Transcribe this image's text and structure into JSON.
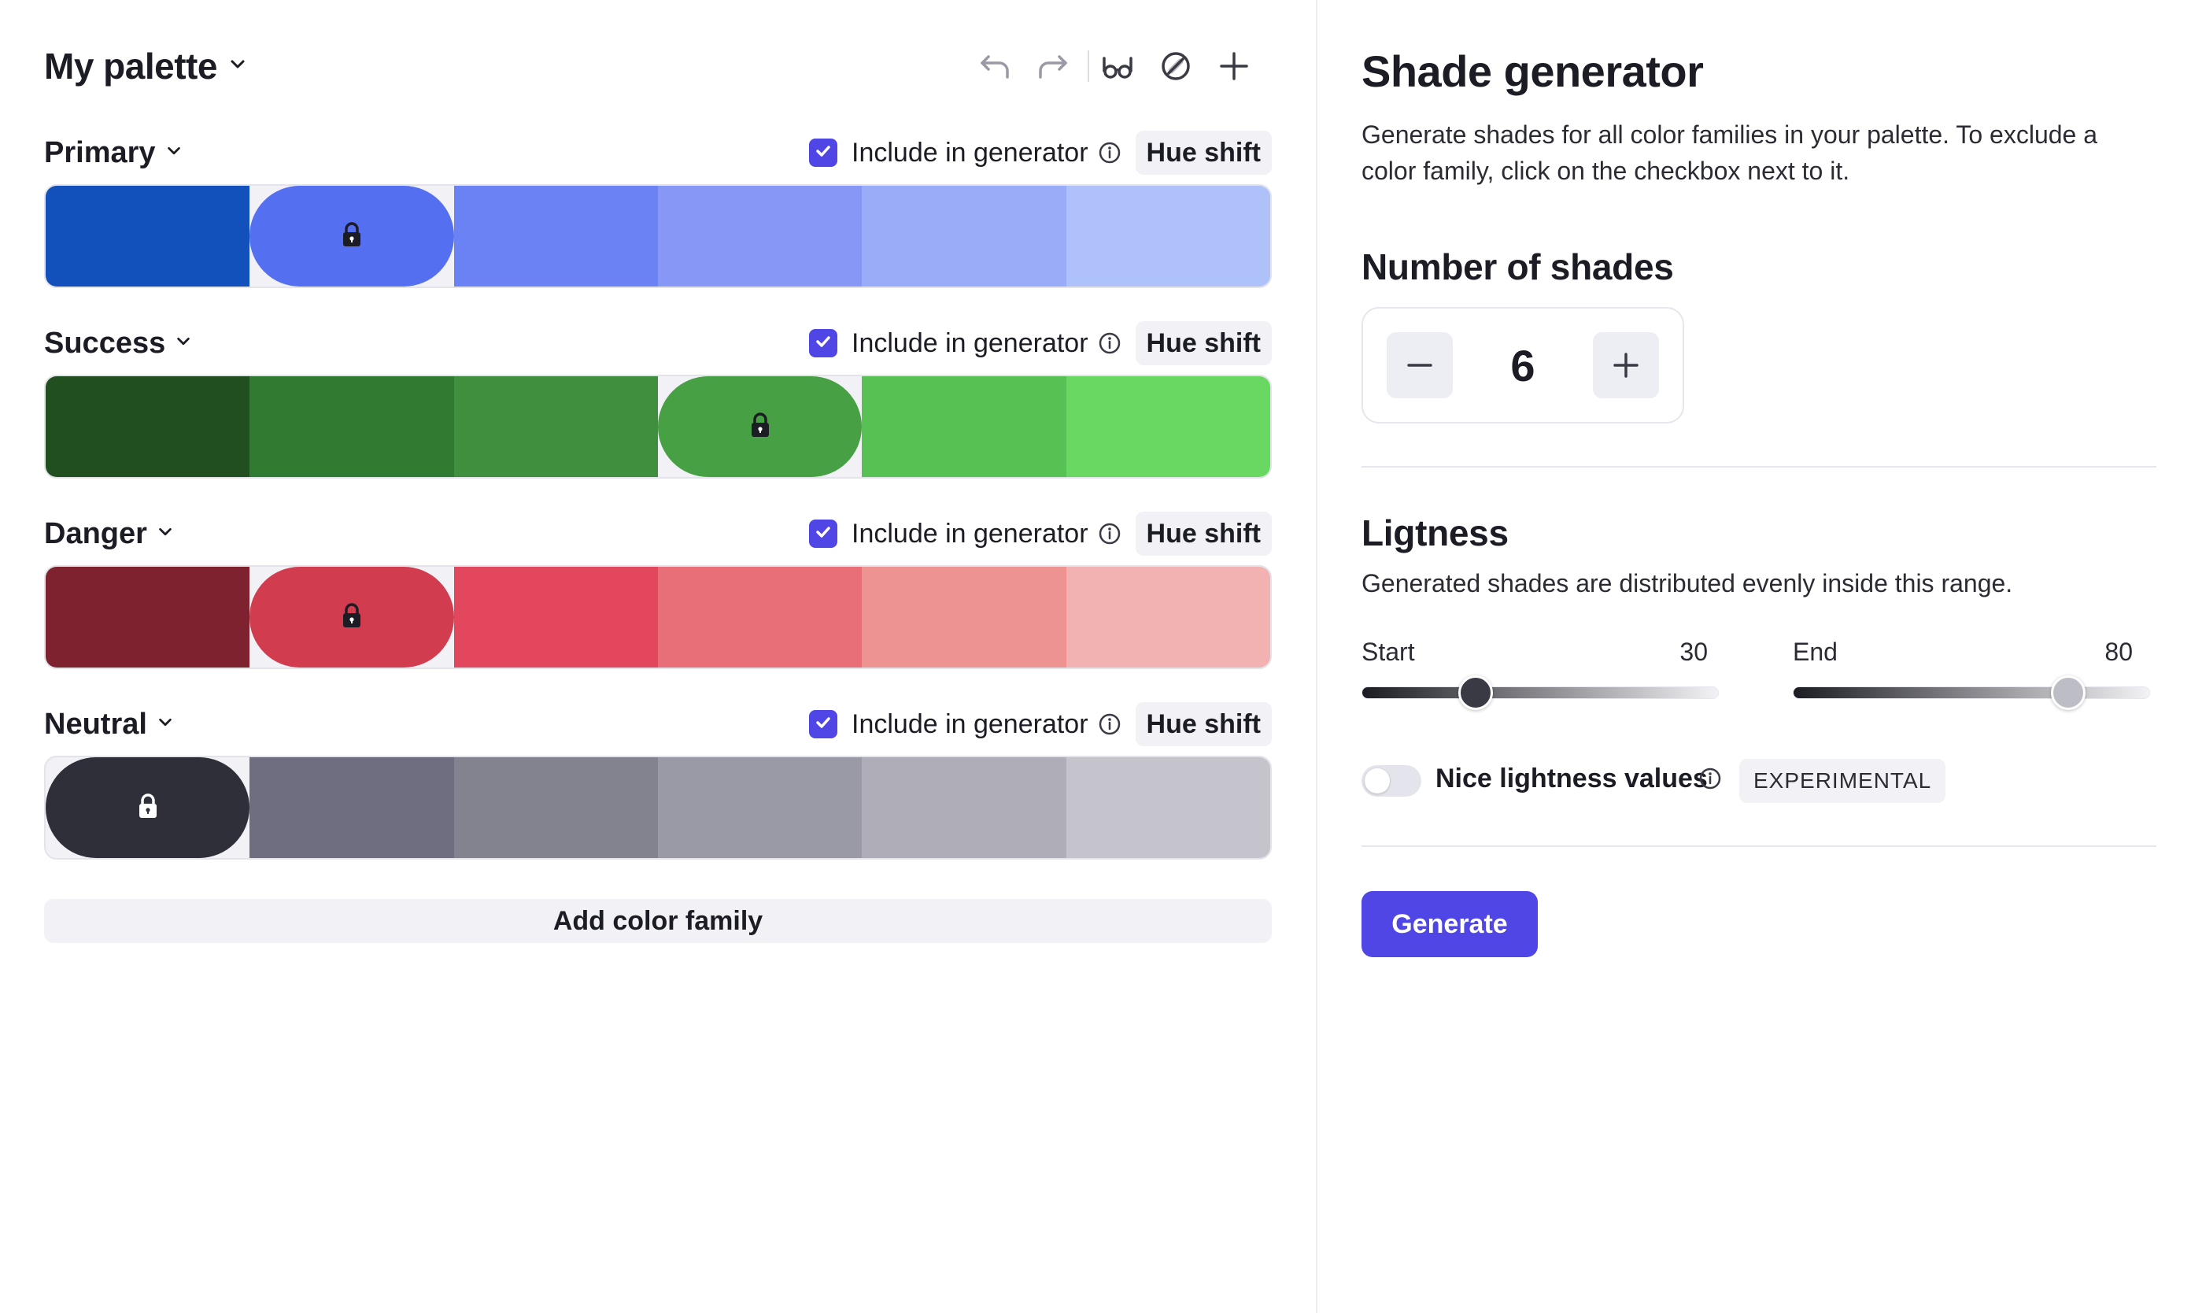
{
  "palette": {
    "title": "My palette",
    "families": [
      {
        "name": "Primary",
        "include_label": "Include in generator",
        "include_checked": true,
        "hue_shift_label": "Hue shift",
        "swatches": [
          "#1250bb",
          "#5470f1",
          "#6a82f3",
          "#8697f5",
          "#9aabf7",
          "#aec2f9"
        ],
        "locked_index": 1
      },
      {
        "name": "Success",
        "include_label": "Include in generator",
        "include_checked": true,
        "hue_shift_label": "Hue shift",
        "swatches": [
          "#214f1f",
          "#2f7b31",
          "#3f8f3f",
          "#47a044",
          "#58c154",
          "#68d862"
        ],
        "locked_index": 3
      },
      {
        "name": "Danger",
        "include_label": "Include in generator",
        "include_checked": true,
        "hue_shift_label": "Hue shift",
        "swatches": [
          "#7e222f",
          "#d13d4f",
          "#e2475d",
          "#e86e78",
          "#ed9493",
          "#f1b2b1"
        ],
        "locked_index": 1
      },
      {
        "name": "Neutral",
        "include_label": "Include in generator",
        "include_checked": true,
        "hue_shift_label": "Hue shift",
        "swatches": [
          "#2e2f38",
          "#6f6e80",
          "#83828f",
          "#9a99a6",
          "#aeadb8",
          "#c5c4cc"
        ],
        "locked_index": 0
      }
    ],
    "add_family_label": "Add color family"
  },
  "toolbar": {
    "icons": [
      "undo-icon",
      "redo-icon",
      "glasses-icon",
      "disabled-icon",
      "plus-icon"
    ]
  },
  "generator": {
    "title": "Shade generator",
    "description": "Generate shades for all color families in your palette. To exclude a color family, click on the checkbox next to it.",
    "shades_title": "Number of shades",
    "shades_count": "6",
    "lightness_title": "Ligtness",
    "lightness_description": "Generated shades are distributed evenly inside this range.",
    "start_label": "Start",
    "start_value": "30",
    "end_label": "End",
    "end_value": "80",
    "nice_label": "Nice lightness values",
    "nice_enabled": false,
    "experimental_badge": "EXPERIMENTAL",
    "generate_label": "Generate"
  },
  "colors": {
    "accent": "#4f46e5",
    "lock_dark": "#1c1c24",
    "lock_light": "#ffffff"
  }
}
